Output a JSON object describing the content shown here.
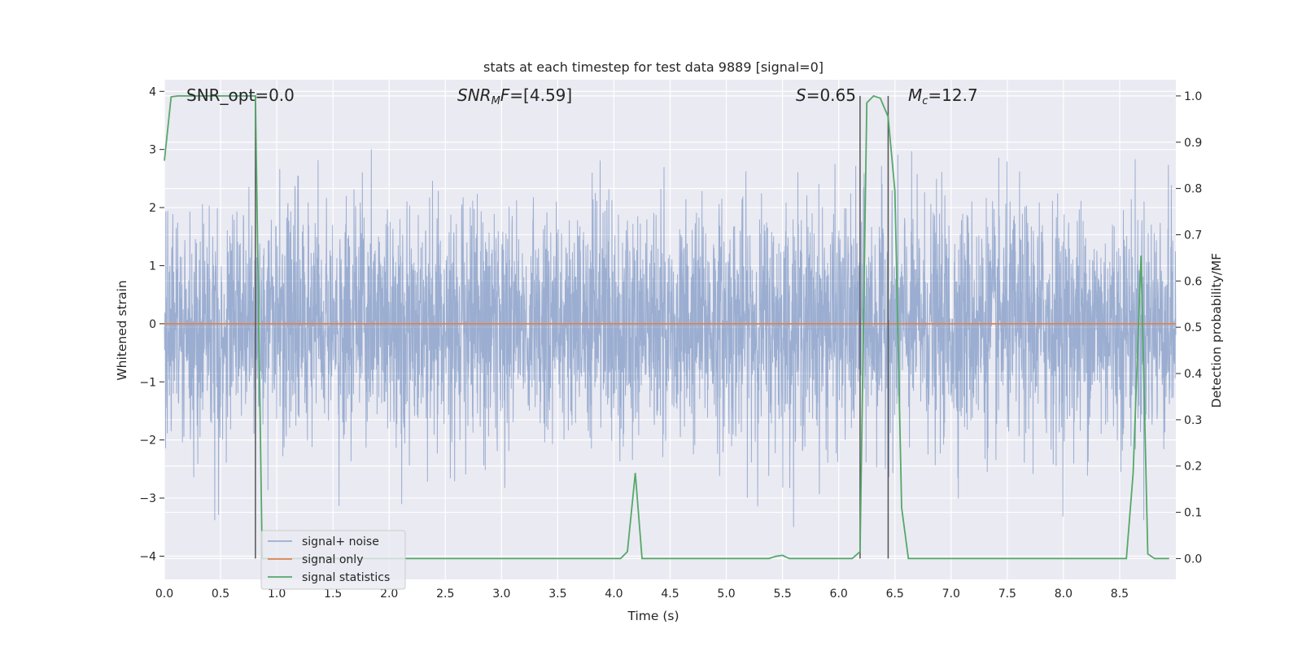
{
  "chart_data": {
    "type": "line",
    "title": "stats at each timestep for test data 9889 [signal=0]",
    "xlabel": "Time (s)",
    "ylabel_left": "Whitened strain",
    "ylabel_right": "Detection probability/MF",
    "xlim": [
      0.0,
      9.0
    ],
    "ylim_left": [
      -4.4,
      4.2
    ],
    "ylim_right": [
      -0.045,
      1.035
    ],
    "x_ticks": [
      "0.0",
      "0.5",
      "1.0",
      "1.5",
      "2.0",
      "2.5",
      "3.0",
      "3.5",
      "4.0",
      "4.5",
      "5.0",
      "5.5",
      "6.0",
      "6.5",
      "7.0",
      "7.5",
      "8.0",
      "8.5"
    ],
    "y_ticks_left": [
      "4",
      "3",
      "2",
      "1",
      "0",
      "−1",
      "−2",
      "−3",
      "−4"
    ],
    "y_ticks_right": [
      "1.0",
      "0.9",
      "0.8",
      "0.7",
      "0.6",
      "0.5",
      "0.4",
      "0.3",
      "0.2",
      "0.1",
      "0.0"
    ],
    "grid": true,
    "legend_position": "lower-left",
    "annotations": {
      "snr_opt": "SNR_opt=0.0",
      "snr_mf": "SNRMF=[4.59]",
      "s": "S=0.65",
      "mc": "Mc=12.7"
    },
    "series": [
      {
        "name": "signal+ noise",
        "color": "#4c72b0",
        "alpha": 0.5,
        "description_type": "noise",
        "amplitude_std": 1.0,
        "x_range": [
          0.0,
          9.0
        ]
      },
      {
        "name": "signal only",
        "color": "#dd8452",
        "x": [
          0.0,
          9.0
        ],
        "y": [
          0.0,
          0.0
        ]
      },
      {
        "name": "signal statistics",
        "color": "#55a868",
        "axis": "right",
        "x": [
          0.0,
          0.06,
          0.12,
          0.19,
          0.25,
          0.31,
          0.37,
          0.44,
          0.5,
          0.56,
          0.62,
          0.69,
          0.75,
          0.81,
          0.87,
          4.06,
          4.12,
          4.19,
          4.25,
          5.38,
          5.44,
          5.5,
          5.56,
          6.12,
          6.19,
          6.25,
          6.31,
          6.37,
          6.44,
          6.5,
          6.56,
          6.62,
          8.56,
          8.62,
          8.69,
          8.75,
          8.81,
          8.87,
          8.94
        ],
        "y": [
          0.86,
          0.998,
          1.0,
          1.0,
          1.0,
          1.0,
          1.0,
          1.0,
          1.0,
          1.0,
          1.0,
          1.0,
          1.0,
          1.0,
          0.0,
          0.0,
          0.015,
          0.185,
          0.0,
          0.0,
          0.005,
          0.007,
          0.0,
          0.0,
          0.015,
          0.985,
          1.0,
          0.995,
          0.955,
          0.795,
          0.11,
          0.0,
          0.0,
          0.185,
          0.655,
          0.01,
          0.0,
          0.0,
          0.0
        ]
      }
    ],
    "vertical_markers": [
      0.81,
      6.19,
      6.44
    ]
  }
}
